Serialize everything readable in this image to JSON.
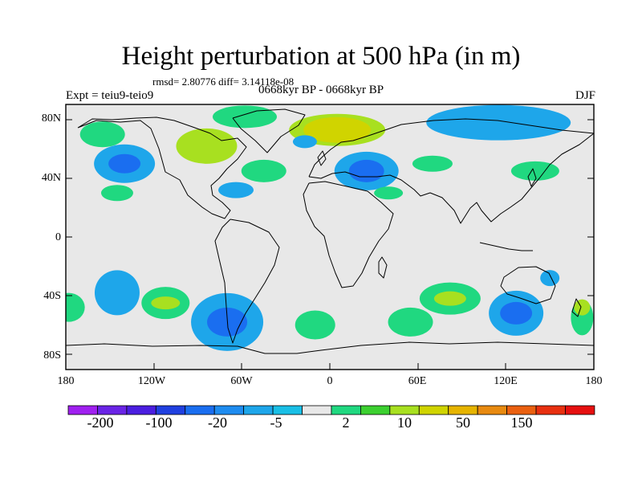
{
  "title": "Height perturbation at 500 hPa (in m)",
  "stats": "rmsd= 2.80776 diff= 3.14118e-08",
  "experiment": "Expt = teiu9-teio9",
  "period": "0668kyr BP - 0668kyr BP",
  "season": "DJF",
  "lat_labels": [
    "80N",
    "40N",
    "0",
    "40S",
    "80S"
  ],
  "lon_labels": [
    "180",
    "120W",
    "60W",
    "0",
    "60E",
    "120E",
    "180"
  ],
  "colorbar": {
    "colors": [
      "#a020f0",
      "#6a24e6",
      "#4b1ee0",
      "#2040e0",
      "#1a6ef0",
      "#1e8cf0",
      "#1ea6ea",
      "#19bfe6",
      "#e8e8e8",
      "#20d880",
      "#3cd030",
      "#a8e020",
      "#d0d400",
      "#e6b400",
      "#e88a10",
      "#ea6010",
      "#e83010",
      "#e61010"
    ],
    "labels": [
      "-200",
      "-100",
      "-20",
      "-5",
      "2",
      "10",
      "50",
      "150"
    ]
  },
  "anomalies": [
    {
      "lon": -58,
      "lat": 82,
      "value": 2
    },
    {
      "lon": 5,
      "lat": 73,
      "value": 10
    },
    {
      "lon": 5,
      "lat": 73,
      "value": 20
    },
    {
      "lon": -84,
      "lat": 62,
      "value": 10
    },
    {
      "lon": -155,
      "lat": 70,
      "value": 2
    },
    {
      "lon": -140,
      "lat": 50,
      "value": -5
    },
    {
      "lon": -140,
      "lat": 50,
      "value": -20
    },
    {
      "lon": -45,
      "lat": 45,
      "value": 2
    },
    {
      "lon": -64,
      "lat": 32,
      "value": -5
    },
    {
      "lon": 25,
      "lat": 45,
      "value": -5
    },
    {
      "lon": 25,
      "lat": 45,
      "value": -20
    },
    {
      "lon": 115,
      "lat": 78,
      "value": -5
    },
    {
      "lon": 70,
      "lat": 50,
      "value": 2
    },
    {
      "lon": 140,
      "lat": 45,
      "value": 2
    },
    {
      "lon": -17,
      "lat": 65,
      "value": -5
    },
    {
      "lon": -145,
      "lat": 30,
      "value": 2
    },
    {
      "lon": 40,
      "lat": 30,
      "value": 2
    },
    {
      "lon": -145,
      "lat": -38,
      "value": -5
    },
    {
      "lon": -112,
      "lat": -45,
      "value": 2
    },
    {
      "lon": -112,
      "lat": -45,
      "value": 10
    },
    {
      "lon": -178,
      "lat": -48,
      "value": 2
    },
    {
      "lon": -70,
      "lat": -58,
      "value": -5
    },
    {
      "lon": -70,
      "lat": -58,
      "value": -20
    },
    {
      "lon": -10,
      "lat": -60,
      "value": 2
    },
    {
      "lon": 55,
      "lat": -58,
      "value": 2
    },
    {
      "lon": 82,
      "lat": -42,
      "value": 2
    },
    {
      "lon": 82,
      "lat": -42,
      "value": 10
    },
    {
      "lon": 127,
      "lat": -52,
      "value": -5
    },
    {
      "lon": 127,
      "lat": -52,
      "value": -20
    },
    {
      "lon": 172,
      "lat": -55,
      "value": 2
    },
    {
      "lon": 172,
      "lat": -48,
      "value": 10
    },
    {
      "lon": 150,
      "lat": -28,
      "value": -5
    }
  ]
}
